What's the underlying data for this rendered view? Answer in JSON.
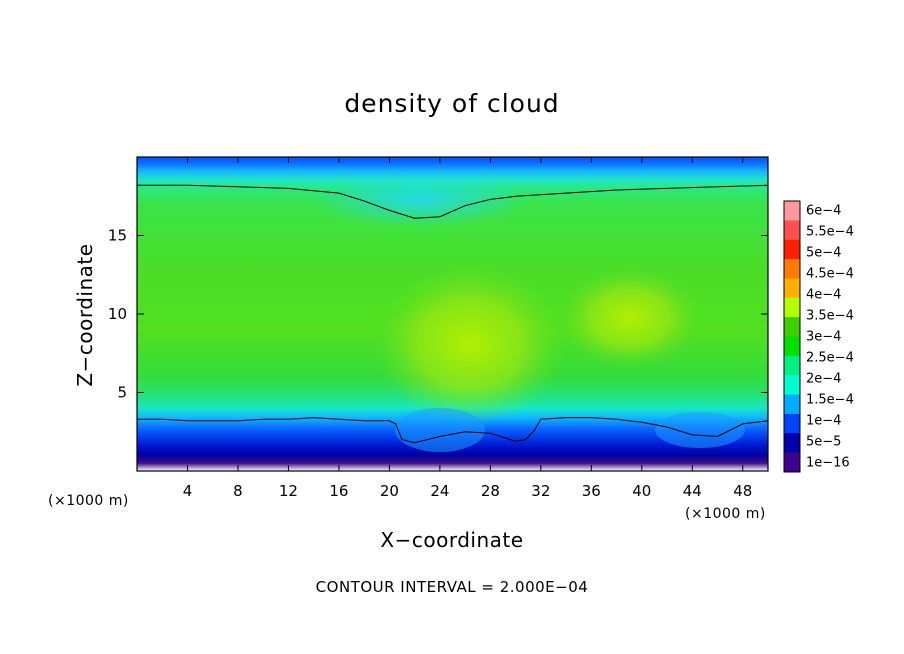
{
  "chart_data": {
    "type": "heatmap",
    "title": "density of cloud",
    "xlabel": "X−coordinate",
    "ylabel": "Z−coordinate",
    "x_unit_label": "(×1000 m)",
    "y_unit_label": "(×1000 m)",
    "xlim": [
      0,
      50
    ],
    "ylim": [
      0,
      20
    ],
    "x_ticks": [
      4,
      8,
      12,
      16,
      20,
      24,
      28,
      32,
      36,
      40,
      44,
      48
    ],
    "y_ticks": [
      5,
      10,
      15
    ],
    "contour_note": "CONTOUR INTERVAL = 2.000E−04",
    "colorbar": {
      "labels": [
        "6e−4",
        "5.5e−4",
        "5e−4",
        "4.5e−4",
        "4e−4",
        "3.5e−4",
        "3e−4",
        "2.5e−4",
        "2e−4",
        "1.5e−4",
        "1e−4",
        "5e−5",
        "1e−16"
      ],
      "colors": [
        "#ff9a9a",
        "#ff5050",
        "#ff2000",
        "#ff7a00",
        "#ffb000",
        "#b4ff00",
        "#40d000",
        "#00e000",
        "#00f080",
        "#00ffd0",
        "#00aaff",
        "#0040ff",
        "#0000aa",
        "#400090"
      ]
    },
    "cloud_top_contour": {
      "x": [
        0,
        4,
        8,
        12,
        16,
        18,
        20,
        22,
        24,
        26,
        28,
        30,
        34,
        38,
        42,
        46,
        50
      ],
      "z": [
        18.2,
        18.2,
        18.1,
        18.0,
        17.7,
        17.2,
        16.6,
        16.1,
        16.2,
        16.9,
        17.3,
        17.5,
        17.7,
        17.9,
        18.0,
        18.1,
        18.2
      ]
    },
    "cloud_base_contour": {
      "x": [
        0,
        2,
        4,
        6,
        8,
        10,
        12,
        14,
        16,
        18,
        20,
        20.5,
        21,
        22,
        24,
        26,
        28,
        30,
        30.8,
        31.5,
        32,
        34,
        36,
        38,
        40,
        42,
        44,
        46,
        48,
        50
      ],
      "z": [
        3.3,
        3.3,
        3.2,
        3.2,
        3.2,
        3.3,
        3.3,
        3.4,
        3.3,
        3.2,
        3.2,
        3.0,
        2.0,
        1.8,
        2.2,
        2.5,
        2.4,
        1.9,
        2.0,
        2.6,
        3.3,
        3.4,
        3.4,
        3.3,
        3.1,
        2.8,
        2.3,
        2.2,
        3.0,
        3.2
      ]
    }
  }
}
